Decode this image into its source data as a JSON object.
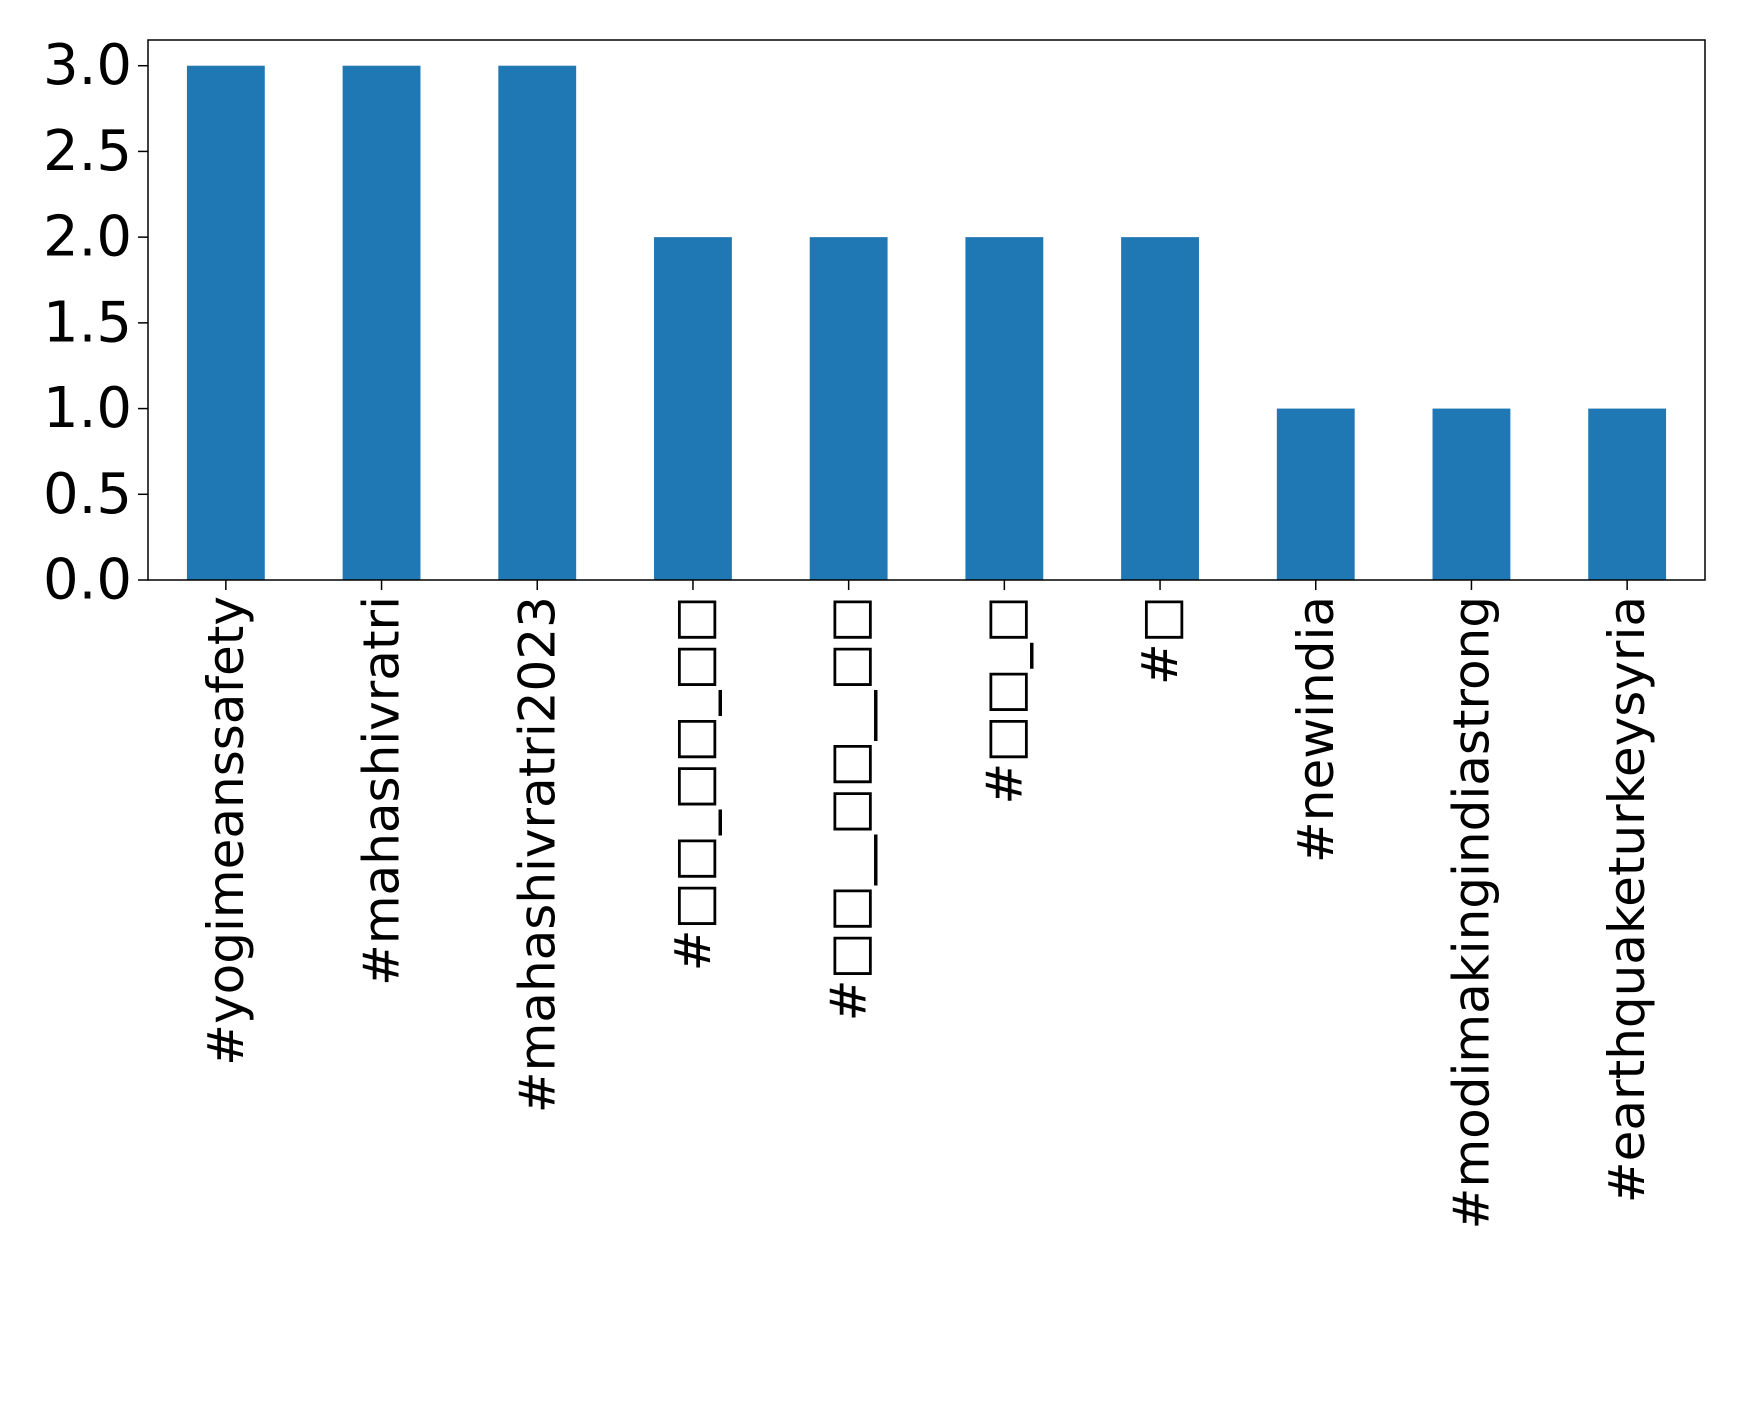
{
  "chart_data": {
    "type": "bar",
    "categories": [
      "#yogimeanssafety",
      "#mahashivratri",
      "#mahashivratri2023",
      "#□□_□□_□□",
      "#□□__□□__□□",
      "#□□_□",
      "#□",
      "#newindia",
      "#modimakingindiastrong",
      "#earthquaketurkeysyria"
    ],
    "values": [
      3,
      3,
      3,
      2,
      2,
      2,
      2,
      1,
      1,
      1
    ],
    "yticks": [
      "0.0",
      "0.5",
      "1.0",
      "1.5",
      "2.0",
      "2.5",
      "3.0"
    ],
    "ylim": [
      0,
      3.15
    ],
    "title": "",
    "xlabel": "",
    "ylabel": "",
    "bar_color": "#1f77b4",
    "grid": false,
    "legend": "none"
  }
}
